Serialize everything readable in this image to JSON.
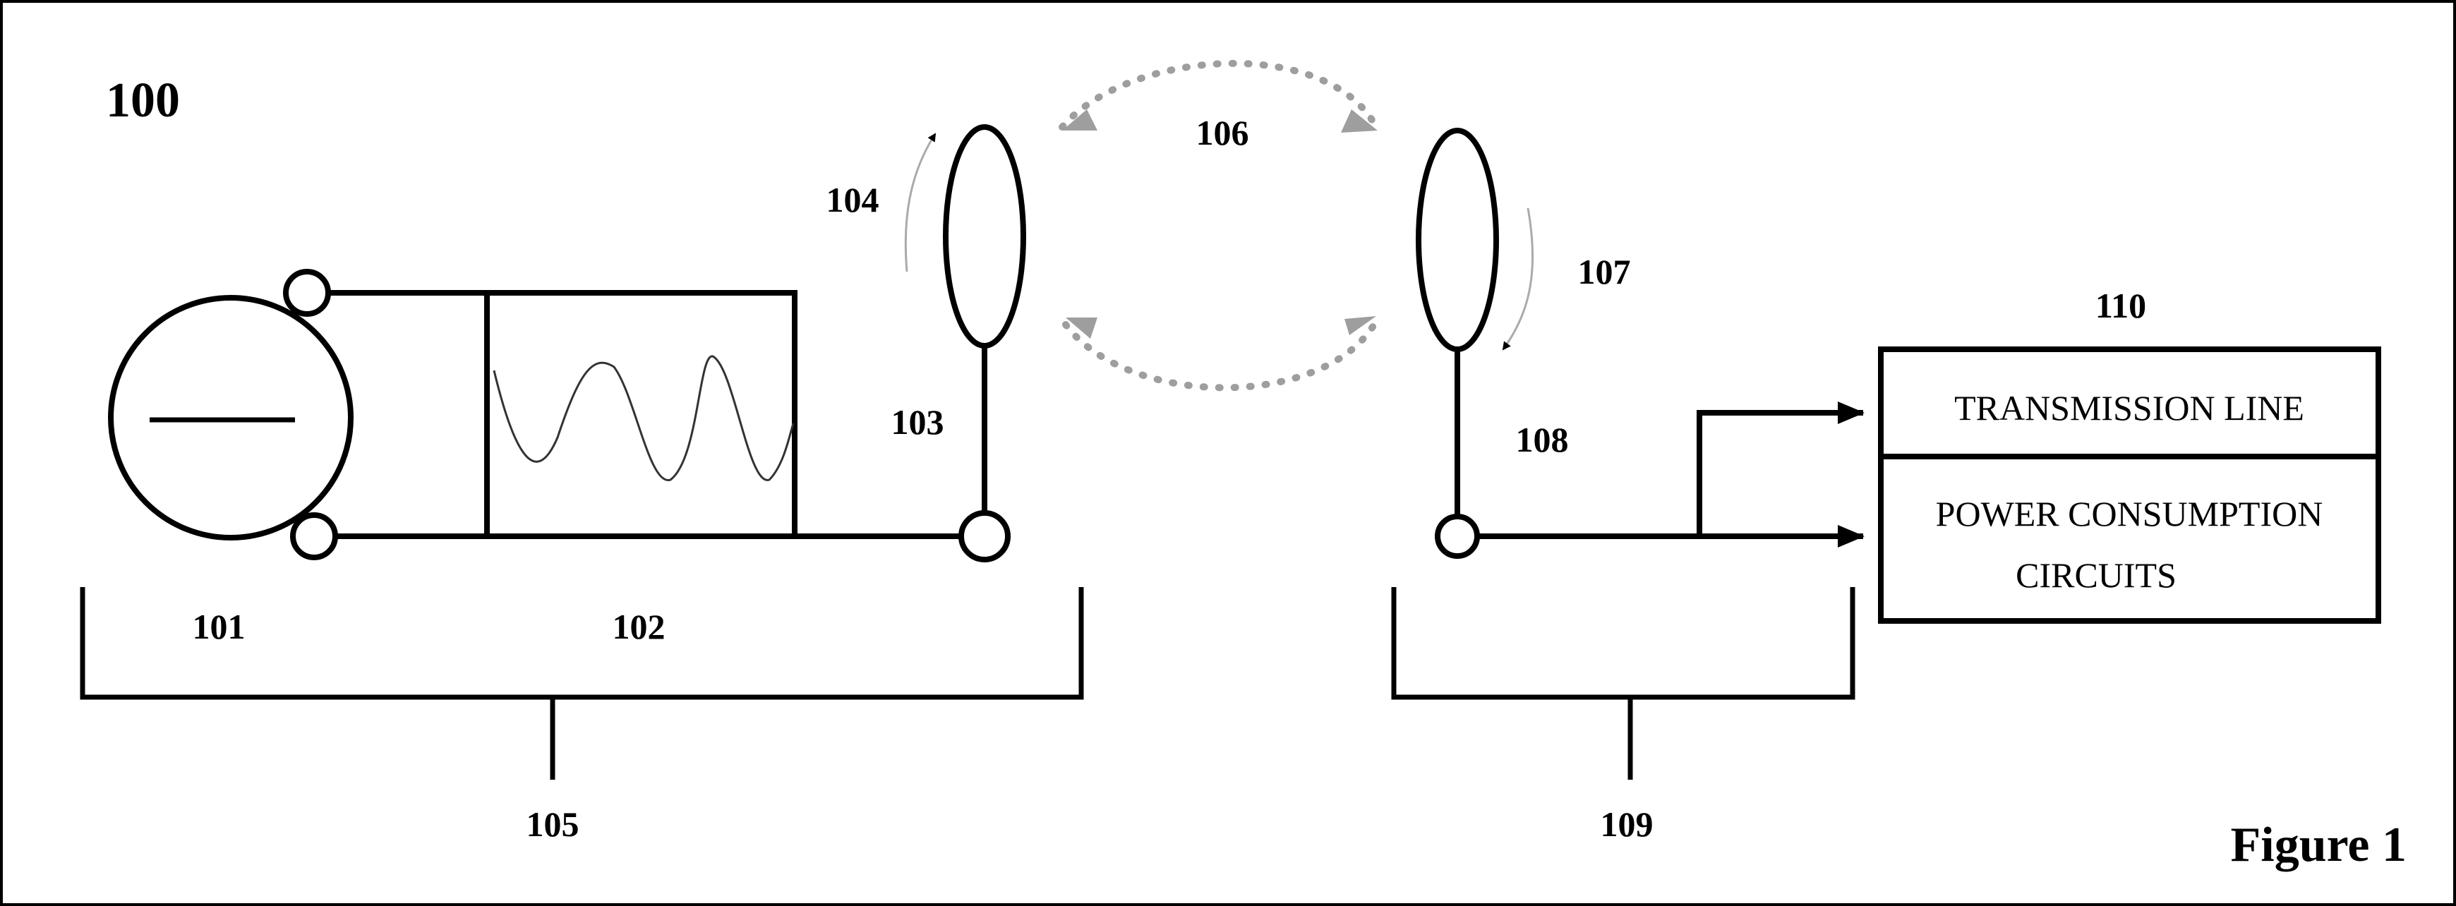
{
  "figure": {
    "reference_number": "100",
    "title": "Figure 1"
  },
  "labels": {
    "ac_source": "101",
    "oscillator": "102",
    "tx_connection": "103",
    "tx_coil": "104",
    "transmitter": "105",
    "coupling": "106",
    "rx_coil": "107",
    "rx_connection": "108",
    "receiver": "109",
    "load": "110"
  },
  "load_box": {
    "transmission_line": "TRANSMISSION LINE",
    "power_consumption_line1": "POWER CONSUMPTION",
    "power_consumption_line2": "CIRCUITS"
  },
  "colors": {
    "line": "#000000",
    "coupling_arrows": "#9e9e9e",
    "coil_direction_arrows": "#7a7a7a",
    "background": "#ffffff"
  }
}
